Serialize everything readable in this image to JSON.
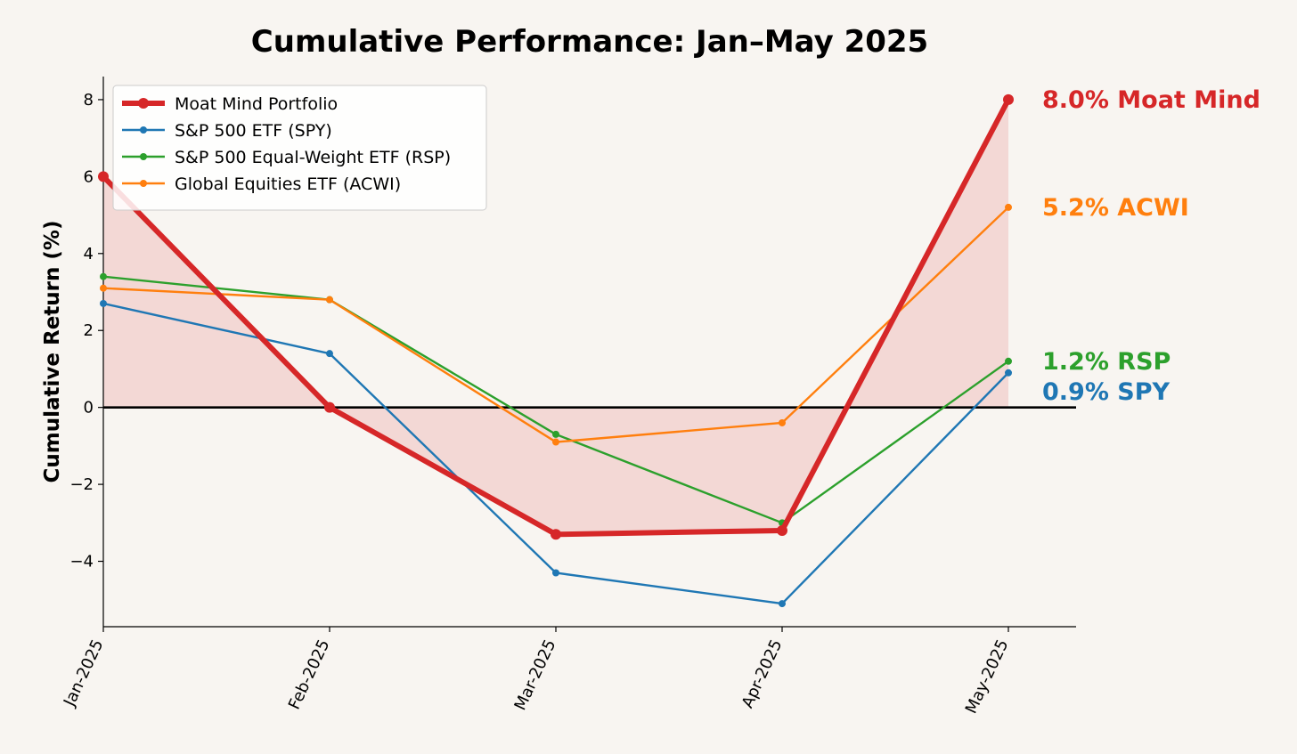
{
  "chart_data": {
    "type": "line",
    "title": "Cumulative Performance: Jan–May 2025",
    "xlabel": "",
    "ylabel": "Cumulative Return (%)",
    "categories": [
      "Jan-2025",
      "Feb-2025",
      "Mar-2025",
      "Apr-2025",
      "May-2025"
    ],
    "ylim": [
      -5.7,
      8.6
    ],
    "yticks": [
      -4,
      -2,
      0,
      2,
      4,
      6,
      8
    ],
    "ytick_labels": [
      "−4",
      "−2",
      "0",
      "2",
      "4",
      "6",
      "8"
    ],
    "grid": false,
    "legend_position": "top-left",
    "series": [
      {
        "name": "Moat Mind Portfolio",
        "values": [
          6.0,
          0.0,
          -3.3,
          -3.2,
          8.0
        ],
        "color": "#d62728",
        "emphasis": true,
        "filled": true,
        "end_label": "8.0% Moat Mind"
      },
      {
        "name": "S&P 500 ETF (SPY)",
        "values": [
          2.7,
          1.4,
          -4.3,
          -5.1,
          0.9
        ],
        "color": "#1f77b4",
        "end_label": "0.9% SPY"
      },
      {
        "name": "S&P 500 Equal-Weight ETF (RSP)",
        "values": [
          3.4,
          2.8,
          -0.7,
          -3.0,
          1.2
        ],
        "color": "#2ca02c",
        "end_label": "1.2% RSP"
      },
      {
        "name": "Global Equities ETF (ACWI)",
        "values": [
          3.1,
          2.8,
          -0.9,
          -0.4,
          5.2
        ],
        "color": "#ff7f0e",
        "end_label": "5.2% ACWI"
      }
    ]
  }
}
